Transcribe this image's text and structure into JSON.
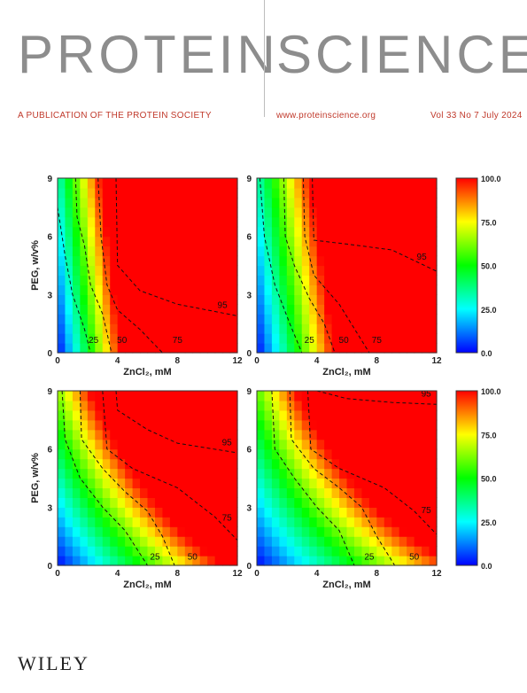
{
  "journal": {
    "title_left": "PROTEIN",
    "title_right": "SCIENCE"
  },
  "subheader": {
    "tagline": "A PUBLICATION OF THE PROTEIN SOCIETY",
    "url": "www.proteinscience.org",
    "issue": "Vol 33 No 7 July 2024"
  },
  "publisher": "WILEY",
  "colors": {
    "title": "#8d8d8d",
    "subheader": "#c0392b",
    "colormap": [
      "#0000ff",
      "#00ffff",
      "#00ff00",
      "#ffff00",
      "#ff0000"
    ]
  },
  "chart_data": {
    "type": "heatmap",
    "xlabel": "ZnCl₂, mM",
    "ylabel": "PEG, w/v%",
    "xlim": [
      0,
      12
    ],
    "ylim": [
      0,
      9
    ],
    "xticks": [
      0,
      4,
      8,
      12
    ],
    "yticks": [
      0,
      3,
      6,
      9
    ],
    "colorbar": {
      "min": 0.0,
      "max": 100.0,
      "ticks": [
        "100.0",
        "75.0",
        "50.0",
        "25.0",
        "0.0"
      ]
    },
    "panels": [
      {
        "contours": [
          {
            "level": "25",
            "label_at": [
              2.4,
              0.5
            ],
            "points": [
              [
                0,
                7.5
              ],
              [
                0.5,
                5
              ],
              [
                1,
                3
              ],
              [
                1.8,
                1.2
              ],
              [
                2.2,
                0
              ]
            ]
          },
          {
            "level": "50",
            "label_at": [
              4.3,
              0.5
            ],
            "points": [
              [
                1.2,
                9
              ],
              [
                1.3,
                7
              ],
              [
                1.8,
                5.5
              ],
              [
                2.2,
                3.5
              ],
              [
                3,
                2
              ],
              [
                3.6,
                0
              ]
            ]
          },
          {
            "level": "75",
            "label_at": [
              8,
              0.5
            ],
            "points": [
              [
                2.7,
                9
              ],
              [
                2.9,
                6
              ],
              [
                3.3,
                3.5
              ],
              [
                4,
                2.2
              ],
              [
                5.5,
                1.2
              ],
              [
                7,
                0
              ]
            ]
          },
          {
            "level": "95",
            "label_at": [
              11,
              2.3
            ],
            "points": [
              [
                3.9,
                9
              ],
              [
                4,
                4.5
              ],
              [
                5.5,
                3.2
              ],
              [
                8,
                2.5
              ],
              [
                12,
                1.9
              ]
            ]
          }
        ]
      },
      {
        "contours": [
          {
            "level": "25",
            "label_at": [
              3.5,
              0.5
            ],
            "points": [
              [
                0.2,
                9
              ],
              [
                0.5,
                6
              ],
              [
                1.2,
                3.5
              ],
              [
                2.2,
                1.5
              ],
              [
                3,
                0
              ]
            ]
          },
          {
            "level": "50",
            "label_at": [
              5.8,
              0.5
            ],
            "points": [
              [
                1.8,
                9
              ],
              [
                1.9,
                6
              ],
              [
                2.5,
                4.5
              ],
              [
                3.5,
                2.8
              ],
              [
                4.5,
                1.5
              ],
              [
                5.2,
                0
              ]
            ]
          },
          {
            "level": "75",
            "label_at": [
              8,
              0.5
            ],
            "points": [
              [
                3.1,
                9
              ],
              [
                3.2,
                6
              ],
              [
                3.8,
                4
              ],
              [
                5.5,
                2.5
              ],
              [
                7.5,
                0
              ]
            ]
          },
          {
            "level": "95",
            "label_at": [
              11,
              4.8
            ],
            "points": [
              [
                3.7,
                9
              ],
              [
                3.8,
                5.8
              ],
              [
                6,
                5.6
              ],
              [
                9,
                5.3
              ],
              [
                12,
                4.2
              ]
            ]
          }
        ]
      },
      {
        "contours": [
          {
            "level": "25",
            "label_at": [
              6.5,
              0.3
            ],
            "points": [
              [
                0.3,
                9
              ],
              [
                0.5,
                6.5
              ],
              [
                1.5,
                4.5
              ],
              [
                3,
                3
              ],
              [
                4.5,
                1.8
              ],
              [
                6,
                0
              ]
            ]
          },
          {
            "level": "50",
            "label_at": [
              9,
              0.3
            ],
            "points": [
              [
                1.5,
                9
              ],
              [
                1.6,
                6.5
              ],
              [
                3,
                5
              ],
              [
                4.5,
                3.8
              ],
              [
                6,
                2.8
              ],
              [
                7,
                1.5
              ],
              [
                7.8,
                0
              ]
            ]
          },
          {
            "level": "75",
            "label_at": [
              11.3,
              2.3
            ],
            "points": [
              [
                3,
                9
              ],
              [
                3.3,
                6
              ],
              [
                5,
                5
              ],
              [
                8,
                4
              ],
              [
                10.5,
                2.5
              ],
              [
                12,
                1.3
              ]
            ]
          },
          {
            "level": "95",
            "label_at": [
              11.3,
              6.2
            ],
            "points": [
              [
                3.9,
                9
              ],
              [
                4,
                8
              ],
              [
                6,
                7
              ],
              [
                8,
                6.3
              ],
              [
                12,
                5.8
              ]
            ]
          }
        ]
      },
      {
        "contours": [
          {
            "level": "25",
            "label_at": [
              7.5,
              0.3
            ],
            "points": [
              [
                1,
                9
              ],
              [
                1.2,
                6
              ],
              [
                2.5,
                4.5
              ],
              [
                4,
                3
              ],
              [
                5.5,
                1.8
              ],
              [
                6.5,
                0
              ]
            ]
          },
          {
            "level": "50",
            "label_at": [
              10.5,
              0.3
            ],
            "points": [
              [
                2.2,
                9
              ],
              [
                2.3,
                6.5
              ],
              [
                3.8,
                5
              ],
              [
                5.5,
                4
              ],
              [
                7,
                3
              ],
              [
                8,
                1.5
              ],
              [
                9.2,
                0
              ]
            ]
          },
          {
            "level": "75",
            "label_at": [
              11.3,
              2.7
            ],
            "points": [
              [
                3.4,
                9
              ],
              [
                3.6,
                6
              ],
              [
                5.5,
                5
              ],
              [
                8.5,
                4
              ],
              [
                10.5,
                2.8
              ],
              [
                12,
                1.6
              ]
            ]
          },
          {
            "level": "95",
            "label_at": [
              11.3,
              8.7
            ],
            "points": [
              [
                4,
                9
              ],
              [
                6,
                8.6
              ],
              [
                9,
                8.4
              ],
              [
                12,
                8.3
              ]
            ]
          }
        ]
      }
    ]
  }
}
